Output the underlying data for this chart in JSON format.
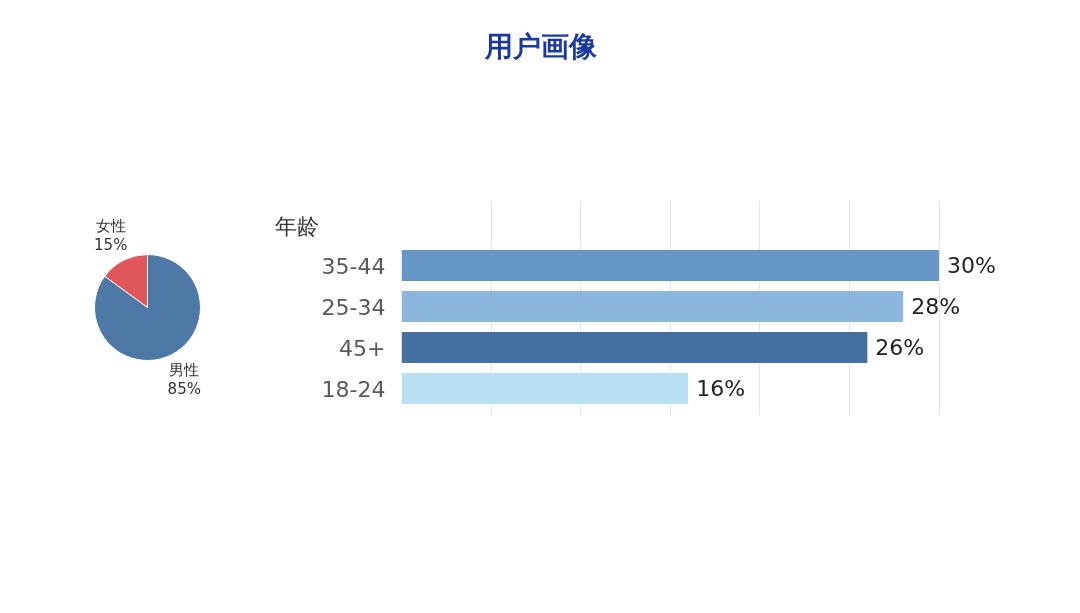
{
  "chart_data": [
    {
      "type": "pie",
      "categories": [
        "女性",
        "男性"
      ],
      "values": [
        15,
        85
      ],
      "colors": [
        "#e15759",
        "#4e79a7"
      ],
      "value_labels": [
        "15%",
        "85%"
      ]
    },
    {
      "type": "bar",
      "title": "用户画像",
      "orientation": "horizontal",
      "ylabel": "年龄",
      "categories": [
        "35-44",
        "25-34",
        "45+",
        "18-24"
      ],
      "values": [
        30,
        28,
        26,
        16
      ],
      "colors": [
        "#6596c5",
        "#8bb7de",
        "#44719f",
        "#b8dff2"
      ],
      "value_labels": [
        "30%",
        "28%",
        "26%",
        "16%"
      ],
      "xticks": [
        {
          "value": 5,
          "label": null
        },
        {
          "value": 10,
          "label": null
        },
        {
          "value": 15,
          "label": null
        },
        {
          "value": 20,
          "label": null
        },
        {
          "value": 25,
          "label": null
        },
        {
          "value": 30,
          "label": null
        }
      ],
      "grid": "x",
      "tick_labels": "y"
    }
  ]
}
